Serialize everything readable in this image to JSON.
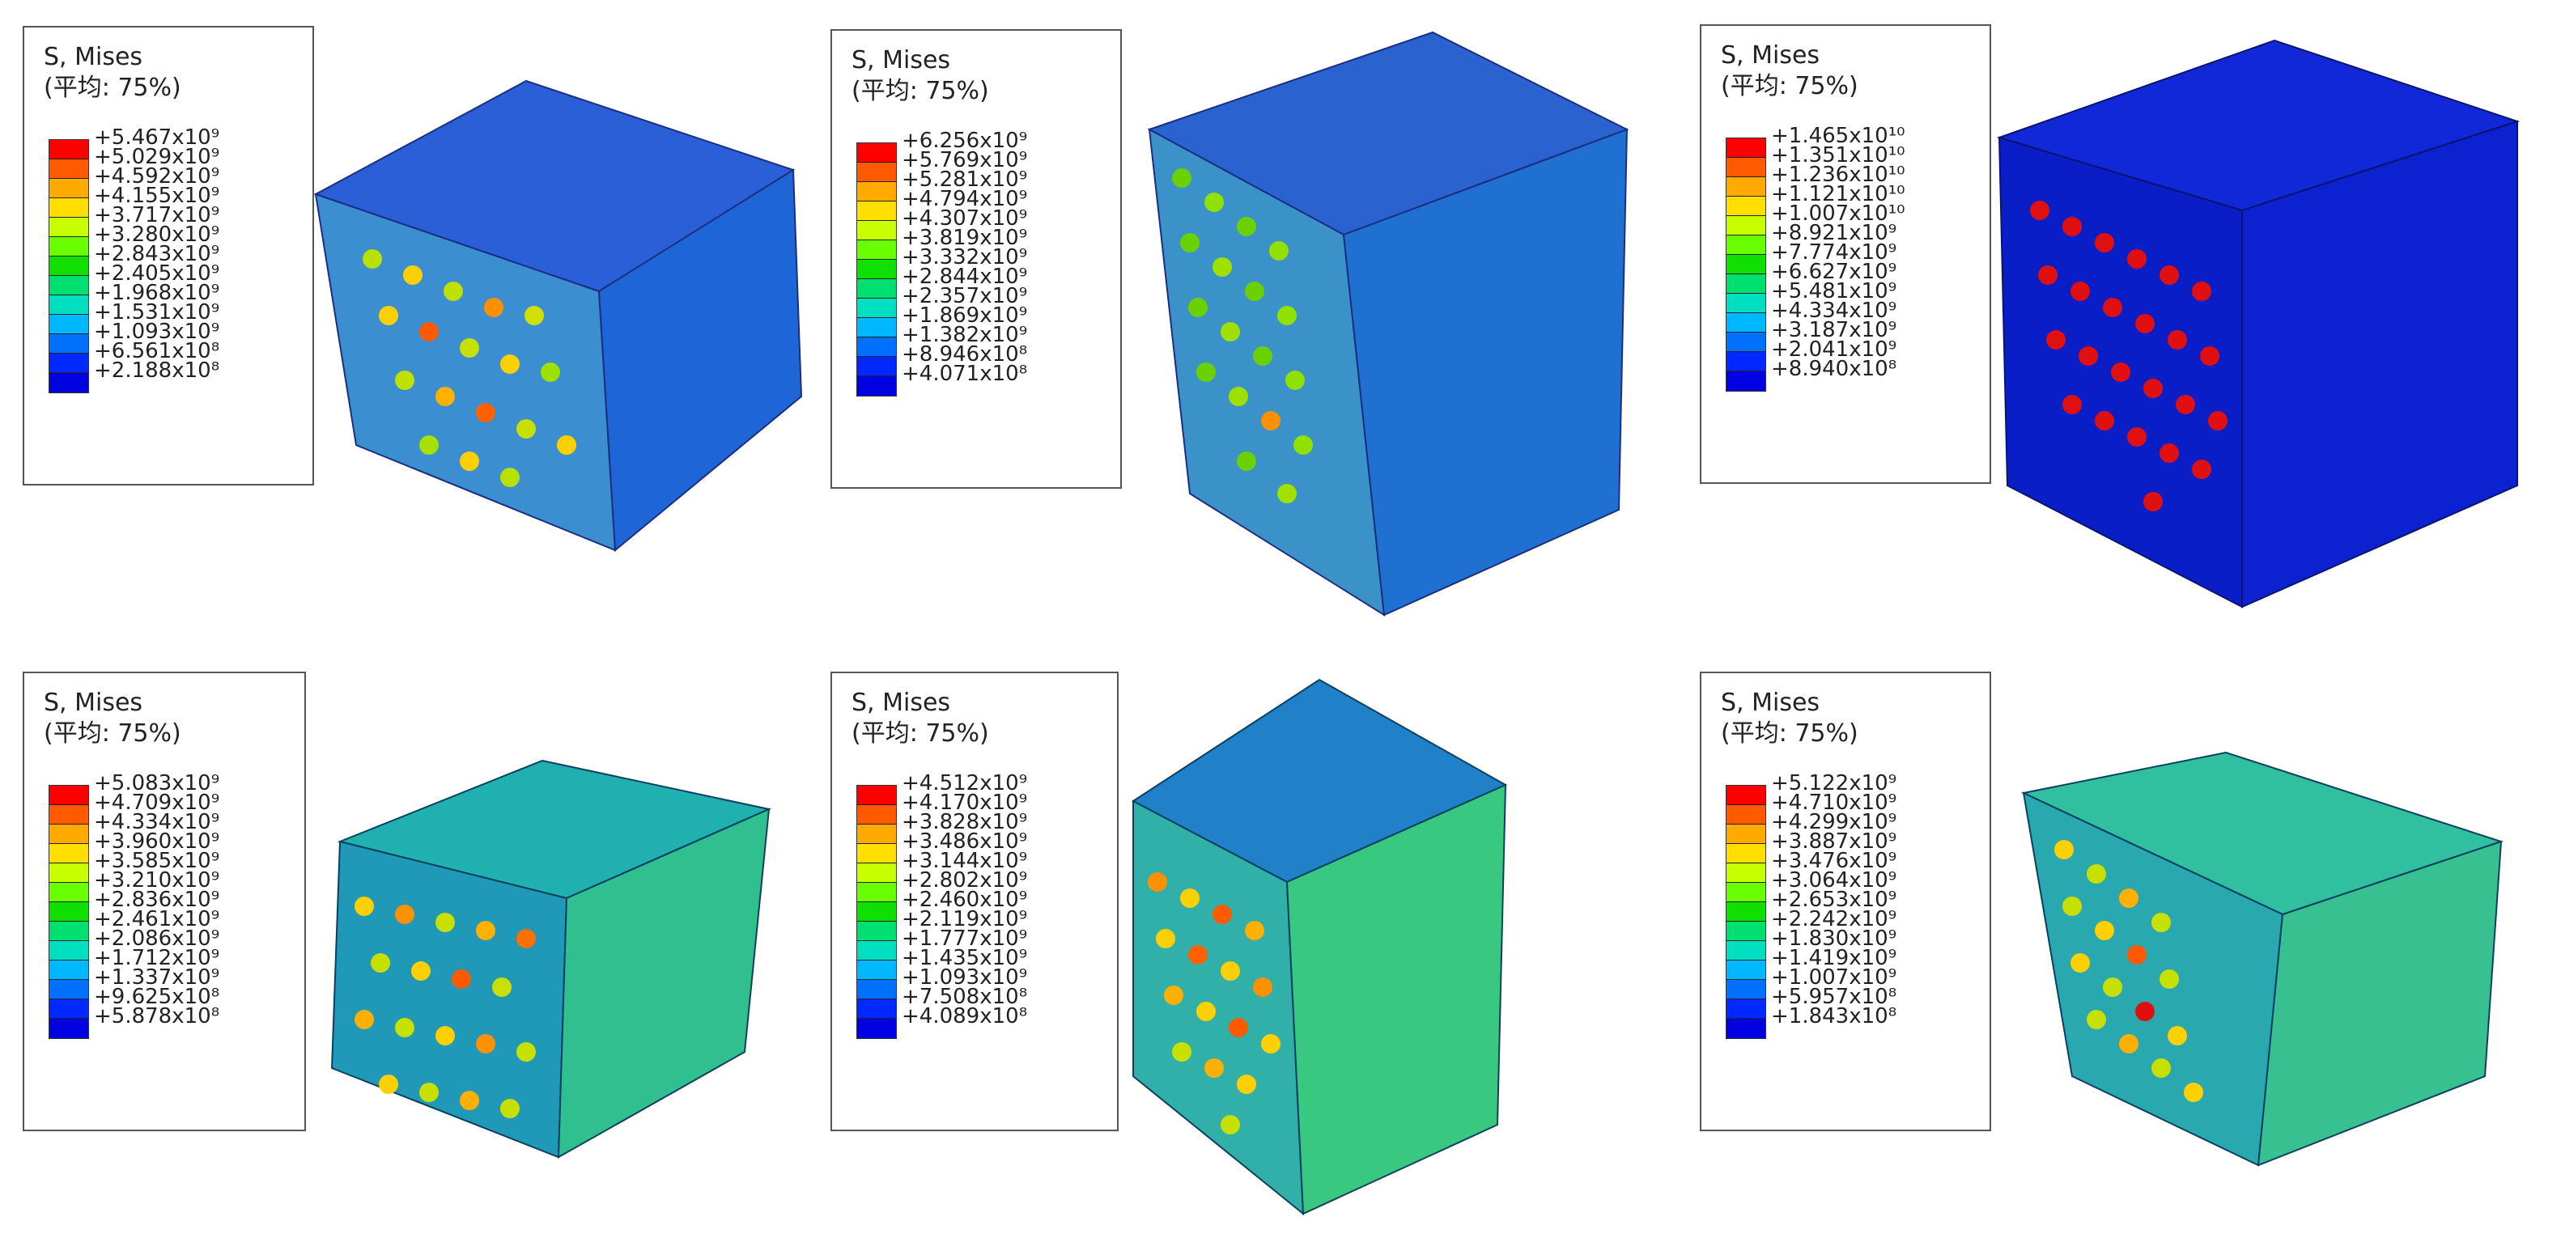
{
  "legend_colors": [
    "#ff0000",
    "#ff5a00",
    "#ffaa00",
    "#ffde00",
    "#c8ff00",
    "#6aff00",
    "#10e000",
    "#00e070",
    "#00e0c0",
    "#00b8ff",
    "#0070ff",
    "#0028ff",
    "#0000e0"
  ],
  "panels": [
    {
      "title": "S, Mises",
      "subtitle": "(平均: 75%)",
      "values": [
        "+5.467x10⁹",
        "+5.029x10⁹",
        "+4.592x10⁹",
        "+4.155x10⁹",
        "+3.717x10⁹",
        "+3.280x10⁹",
        "+2.843x10⁹",
        "+2.405x10⁹",
        "+1.968x10⁹",
        "+1.531x10⁹",
        "+1.093x10⁹",
        "+6.561x10⁸",
        "+2.188x10⁸"
      ]
    },
    {
      "title": "S, Mises",
      "subtitle": "(平均: 75%)",
      "values": [
        "+6.256x10⁹",
        "+5.769x10⁹",
        "+5.281x10⁹",
        "+4.794x10⁹",
        "+4.307x10⁹",
        "+3.819x10⁹",
        "+3.332x10⁹",
        "+2.844x10⁹",
        "+2.357x10⁹",
        "+1.869x10⁹",
        "+1.382x10⁹",
        "+8.946x10⁸",
        "+4.071x10⁸"
      ]
    },
    {
      "title": "S, Mises",
      "subtitle": "(平均: 75%)",
      "values": [
        "+1.465x10¹⁰",
        "+1.351x10¹⁰",
        "+1.236x10¹⁰",
        "+1.121x10¹⁰",
        "+1.007x10¹⁰",
        "+8.921x10⁹",
        "+7.774x10⁹",
        "+6.627x10⁹",
        "+5.481x10⁹",
        "+4.334x10⁹",
        "+3.187x10⁹",
        "+2.041x10⁹",
        "+8.940x10⁸"
      ]
    },
    {
      "title": "S, Mises",
      "subtitle": "(平均: 75%)",
      "values": [
        "+5.083x10⁹",
        "+4.709x10⁹",
        "+4.334x10⁹",
        "+3.960x10⁹",
        "+3.585x10⁹",
        "+3.210x10⁹",
        "+2.836x10⁹",
        "+2.461x10⁹",
        "+2.086x10⁹",
        "+1.712x10⁹",
        "+1.337x10⁹",
        "+9.625x10⁸",
        "+5.878x10⁸"
      ]
    },
    {
      "title": "S, Mises",
      "subtitle": "(平均: 75%)",
      "values": [
        "+4.512x10⁹",
        "+4.170x10⁹",
        "+3.828x10⁹",
        "+3.486x10⁹",
        "+3.144x10⁹",
        "+2.802x10⁹",
        "+2.460x10⁹",
        "+2.119x10⁹",
        "+1.777x10⁹",
        "+1.435x10⁹",
        "+1.093x10⁹",
        "+7.508x10⁸",
        "+4.089x10⁸"
      ]
    },
    {
      "title": "S, Mises",
      "subtitle": "(平均: 75%)",
      "values": [
        "+5.122x10⁹",
        "+4.710x10⁹",
        "+4.299x10⁹",
        "+3.887x10⁹",
        "+3.476x10⁹",
        "+3.064x10⁹",
        "+2.653x10⁹",
        "+2.242x10⁹",
        "+1.830x10⁹",
        "+1.419x10⁹",
        "+1.007x10⁹",
        "+5.957x10⁸",
        "+1.843x10⁸"
      ]
    }
  ]
}
